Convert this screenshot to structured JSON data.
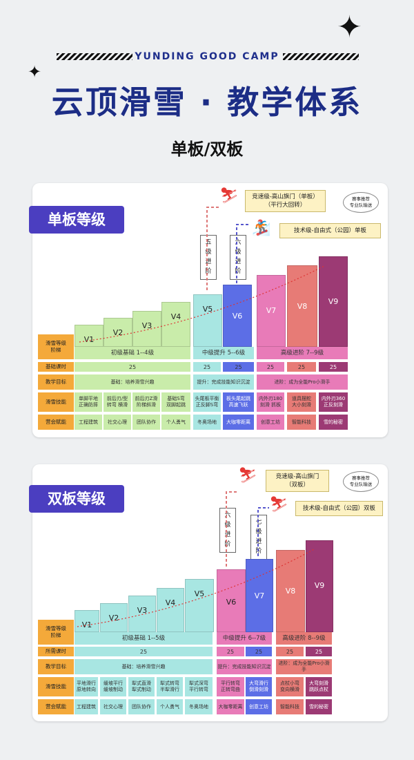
{
  "header": {
    "camp_name": "YUNDING GOOD CAMP",
    "title": "云顶滑雪 · 教学体系",
    "subtitle": "单板/双板"
  },
  "snowboard": {
    "tag": "单板等级",
    "competition": "竞速级-高山旗门（单板）\n（平行大回转）",
    "freestyle": "技术级-自由式（公园）单板",
    "recommend": "赛事推荐\n专业队输送",
    "step_a": "五\n级\n进\n阶",
    "step_b": "六\n级\n进\n阶",
    "bars": [
      "V1",
      "V2",
      "V3",
      "V4",
      "V5",
      "V6",
      "V7",
      "V8",
      "V9"
    ],
    "rows": {
      "ladder_label": "滑雪等级\n阶梯",
      "beginner": "初级基础 1--4级",
      "intermediate": "中级提升 5--6级",
      "advanced": "高级进阶 7--9级",
      "hours_label": "基础课时",
      "hours": [
        "25",
        "25",
        "25",
        "25",
        "25",
        "25"
      ],
      "goal_label": "教学目标",
      "goal_basic": "基础：培养滑雪兴趣",
      "goal_mid": "提升：完成技能知识沉淀",
      "goal_adv": "进阶：成为全能Pro小滑手",
      "skill_label": "滑雪技能",
      "skills": [
        "单脚平地\n正确防摔",
        "前后刃/型\n转弯 横滑",
        "前后刃Z滑\n阶梯斜滑",
        "基础S弯\n双脚起跳",
        "头尾板平衡\n正反脚S弯",
        "板头尾起跳\n高速飞跃",
        "内外刃180\n刻滑 抓板",
        "道具摆舵\n大小刻滑",
        "内外刃360\n正反刻滑"
      ],
      "empower_label": "营会赋能",
      "empower": [
        "工程建筑",
        "社交心理",
        "团队协作",
        "个人勇气",
        "冬奥场地",
        "大咖零距离",
        "创意工坊",
        "智能科技",
        "雪的秘密"
      ]
    }
  },
  "ski": {
    "tag": "双板等级",
    "competition": "竞速级-高山旗门\n（双板）",
    "freestyle": "技术级-自由式（公园）双板",
    "recommend": "赛事推荐\n专业队输送",
    "step_a": "六\n级\n进\n阶",
    "step_b": "七\n级\n进\n阶",
    "bars": [
      "V1",
      "V2",
      "V3",
      "V4",
      "V5",
      "V6",
      "V7",
      "V8",
      "V9"
    ],
    "rows": {
      "ladder_label": "滑雪等级\n阶梯",
      "beginner": "初级基础 1--5级",
      "intermediate": "中级提升 6--7级",
      "advanced": "高级进阶 8--9级",
      "hours_label": "所需课时",
      "hours": [
        "25",
        "25",
        "25",
        "25",
        "25"
      ],
      "goal_label": "教学目标",
      "goal_basic": "基础：培养滑雪兴趣",
      "goal_mid": "提升：完成技能知识沉淀",
      "goal_adv": "进阶：成为全能Pro小滑手",
      "skill_label": "滑雪技能",
      "skills": [
        "平地滑行\n原地转向",
        "缓坡平行\n缓坡制动",
        "犁式直滑\n犁式制动",
        "犁式转弯\n半犁滑行",
        "犁式深弯\n平行转弯",
        "平行转弯\n正转弯曲",
        "大弯滑行\n倒滑刻滑",
        "点杖小弯\n变向横滑",
        "大弯刻滑\n跳跃点杖"
      ],
      "empower_label": "营会赋能",
      "empower": [
        "工程建筑",
        "社交心理",
        "团队协作",
        "个人勇气",
        "冬奥场地",
        "大咖零距离",
        "创意工坊",
        "智能科技",
        "雪的秘密"
      ]
    }
  },
  "colors": {
    "brand": "#1c2d86",
    "tag": "#4b3ec0",
    "beginner": "#c9ecaa",
    "intermediate": "#a8e6e2",
    "blue": "#5c6ee6",
    "pink": "#e87bb8",
    "salmon": "#e77b76",
    "plum": "#9c3a74",
    "label": "#f4a93a"
  }
}
